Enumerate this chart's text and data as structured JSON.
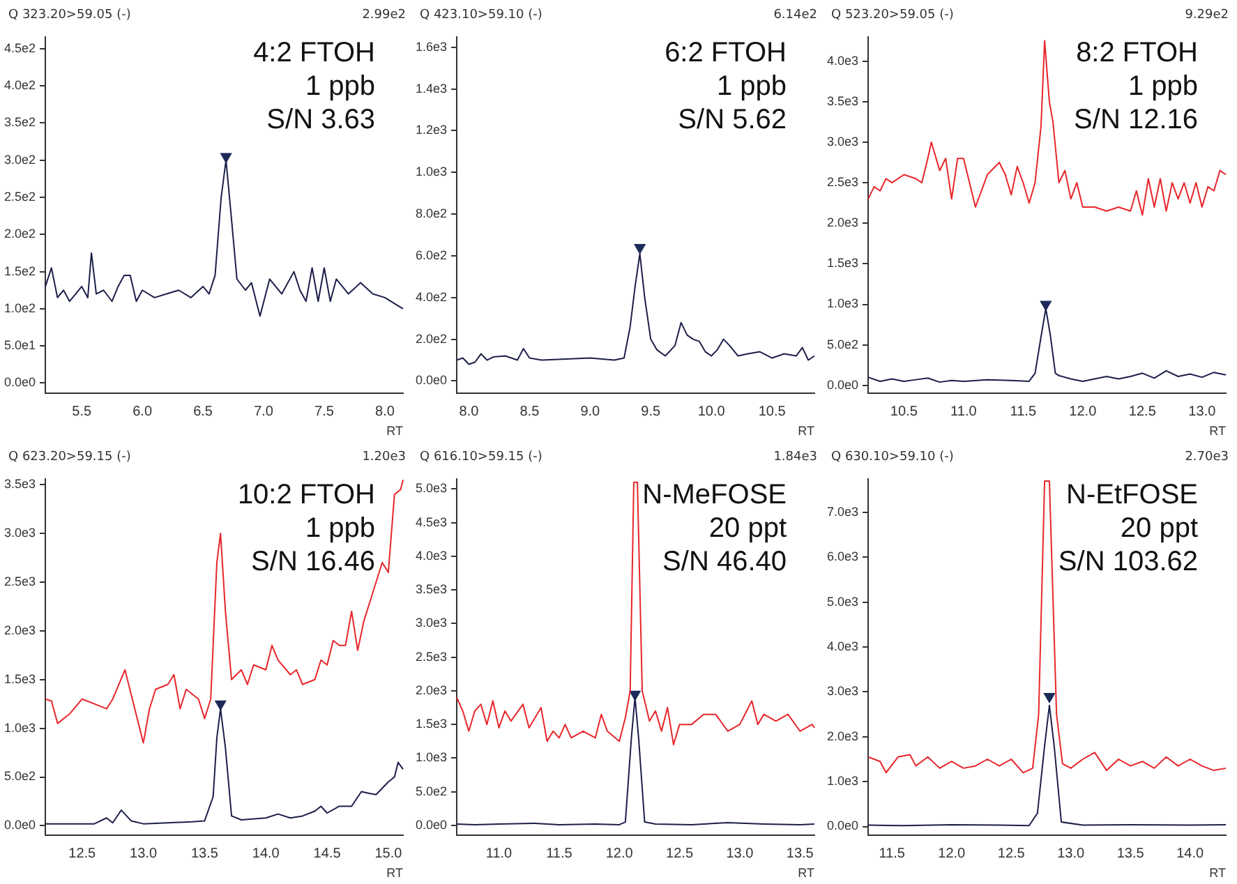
{
  "chart_data": [
    {
      "type": "line",
      "title": "Q 323.20>59.05 (-)",
      "xlabel": "RT",
      "annotations": [
        "2.99e2",
        "4:2 FTOH",
        "1 ppb",
        "S/N 3.63"
      ],
      "legend": false,
      "grid": false,
      "xlim": [
        5.2,
        8.15
      ],
      "ylim": [
        -14,
        466
      ],
      "xticks": [
        {
          "value": 5.5,
          "label": "5.5"
        },
        {
          "value": 6,
          "label": "6.0"
        },
        {
          "value": 6.5,
          "label": "6.5"
        },
        {
          "value": 7,
          "label": "7.0"
        },
        {
          "value": 7.5,
          "label": "7.5"
        },
        {
          "value": 8,
          "label": "8.0"
        }
      ],
      "yticks": [
        {
          "value": 0,
          "label": "0.0e0"
        },
        {
          "value": 50,
          "label": "5.0e1"
        },
        {
          "value": 100,
          "label": "1.0e2"
        },
        {
          "value": 150,
          "label": "1.5e2"
        },
        {
          "value": 200,
          "label": "2.0e2"
        },
        {
          "value": 250,
          "label": "2.5e2"
        },
        {
          "value": 300,
          "label": "3.0e2"
        },
        {
          "value": 350,
          "label": "3.5e2"
        },
        {
          "value": 400,
          "label": "4.0e2"
        },
        {
          "value": 450,
          "label": "4.5e2"
        }
      ],
      "series": [
        {
          "color": "#1c1f4a",
          "x": [
            5.2,
            5.25,
            5.3,
            5.35,
            5.4,
            5.45,
            5.5,
            5.55,
            5.58,
            5.62,
            5.68,
            5.75,
            5.8,
            5.85,
            5.9,
            5.95,
            6.0,
            6.1,
            6.2,
            6.3,
            6.4,
            6.5,
            6.55,
            6.6,
            6.65,
            6.69,
            6.73,
            6.78,
            6.85,
            6.9,
            6.97,
            7.05,
            7.15,
            7.25,
            7.3,
            7.35,
            7.4,
            7.45,
            7.5,
            7.55,
            7.6,
            7.7,
            7.8,
            7.9,
            8.0,
            8.1,
            8.15
          ],
          "values": [
            130,
            155,
            115,
            125,
            110,
            120,
            130,
            115,
            175,
            120,
            125,
            110,
            130,
            145,
            145,
            110,
            125,
            115,
            120,
            125,
            115,
            130,
            120,
            145,
            250,
            300,
            230,
            140,
            125,
            135,
            90,
            140,
            120,
            150,
            125,
            110,
            155,
            110,
            155,
            110,
            140,
            120,
            135,
            120,
            115,
            105,
            100
          ]
        },
        {
          "type": "scatter",
          "marker": "triangle",
          "color": "#1c2a5a",
          "x": [
            6.69
          ],
          "values": [
            305
          ]
        }
      ]
    },
    {
      "type": "line",
      "title": "Q 423.10>59.10 (-)",
      "xlabel": "RT",
      "annotations": [
        "6.14e2",
        "6:2 FTOH",
        "1 ppb",
        "S/N 5.62"
      ],
      "legend": false,
      "grid": false,
      "xlim": [
        7.9,
        10.85
      ],
      "ylim": [
        -60,
        1650
      ],
      "xticks": [
        {
          "value": 8,
          "label": "8.0"
        },
        {
          "value": 8.5,
          "label": "8.5"
        },
        {
          "value": 9,
          "label": "9.0"
        },
        {
          "value": 9.5,
          "label": "9.5"
        },
        {
          "value": 10,
          "label": "10.0"
        },
        {
          "value": 10.5,
          "label": "10.5"
        }
      ],
      "yticks": [
        {
          "value": 0,
          "label": "0.0e0"
        },
        {
          "value": 200,
          "label": "2.0e2"
        },
        {
          "value": 400,
          "label": "4.0e2"
        },
        {
          "value": 600,
          "label": "6.0e2"
        },
        {
          "value": 800,
          "label": "8.0e2"
        },
        {
          "value": 1000,
          "label": "1.0e3"
        },
        {
          "value": 1200,
          "label": "1.2e3"
        },
        {
          "value": 1400,
          "label": "1.4e3"
        },
        {
          "value": 1600,
          "label": "1.6e3"
        }
      ],
      "series": [
        {
          "color": "#1c1f4a",
          "x": [
            7.9,
            7.95,
            8.0,
            8.05,
            8.1,
            8.15,
            8.2,
            8.3,
            8.4,
            8.45,
            8.5,
            8.6,
            8.8,
            9.0,
            9.2,
            9.28,
            9.33,
            9.37,
            9.41,
            9.45,
            9.5,
            9.55,
            9.62,
            9.7,
            9.75,
            9.8,
            9.85,
            9.9,
            9.95,
            10.0,
            10.05,
            10.1,
            10.15,
            10.22,
            10.3,
            10.4,
            10.5,
            10.6,
            10.7,
            10.75,
            10.8,
            10.85
          ],
          "values": [
            100,
            110,
            80,
            90,
            130,
            100,
            115,
            120,
            100,
            155,
            110,
            100,
            105,
            110,
            100,
            110,
            260,
            450,
            610,
            400,
            200,
            150,
            120,
            170,
            280,
            220,
            200,
            190,
            140,
            120,
            150,
            200,
            170,
            120,
            130,
            140,
            110,
            130,
            120,
            160,
            100,
            120
          ]
        },
        {
          "type": "scatter",
          "marker": "triangle",
          "color": "#1c2a5a",
          "x": [
            9.41
          ],
          "values": [
            640
          ]
        }
      ]
    },
    {
      "type": "line",
      "title": "Q 523.20>59.05 (-)",
      "xlabel": "RT",
      "annotations": [
        "9.29e2",
        "8:2 FTOH",
        "1 ppb",
        "S/N 12.16"
      ],
      "legend": false,
      "grid": false,
      "xlim": [
        10.2,
        13.2
      ],
      "ylim": [
        -100,
        4300
      ],
      "xticks": [
        {
          "value": 10.5,
          "label": "10.5"
        },
        {
          "value": 11,
          "label": "11.0"
        },
        {
          "value": 11.5,
          "label": "11.5"
        },
        {
          "value": 12,
          "label": "12.0"
        },
        {
          "value": 12.5,
          "label": "12.5"
        },
        {
          "value": 13,
          "label": "13.0"
        }
      ],
      "yticks": [
        {
          "value": 0,
          "label": "0.0e0"
        },
        {
          "value": 500,
          "label": "5.0e2"
        },
        {
          "value": 1000,
          "label": "1.0e3"
        },
        {
          "value": 1500,
          "label": "1.5e3"
        },
        {
          "value": 2000,
          "label": "2.0e3"
        },
        {
          "value": 2500,
          "label": "2.5e3"
        },
        {
          "value": 3000,
          "label": "3.0e3"
        },
        {
          "value": 3500,
          "label": "3.5e3"
        },
        {
          "value": 4000,
          "label": "4.0e3"
        }
      ],
      "series": [
        {
          "color": "#e8262b",
          "x": [
            10.2,
            10.25,
            10.3,
            10.35,
            10.4,
            10.5,
            10.6,
            10.65,
            10.7,
            10.73,
            10.8,
            10.85,
            10.9,
            10.95,
            11.0,
            11.05,
            11.1,
            11.2,
            11.3,
            11.35,
            11.4,
            11.45,
            11.5,
            11.55,
            11.6,
            11.65,
            11.68,
            11.72,
            11.75,
            11.8,
            11.85,
            11.9,
            11.95,
            12.0,
            12.1,
            12.2,
            12.3,
            12.4,
            12.45,
            12.5,
            12.55,
            12.6,
            12.65,
            12.7,
            12.75,
            12.8,
            12.85,
            12.9,
            12.95,
            13.0,
            13.05,
            13.1,
            13.15,
            13.2
          ],
          "values": [
            2300,
            2450,
            2400,
            2550,
            2500,
            2600,
            2550,
            2500,
            2800,
            3000,
            2650,
            2800,
            2300,
            2800,
            2800,
            2500,
            2200,
            2600,
            2750,
            2600,
            2350,
            2700,
            2500,
            2250,
            2500,
            3200,
            4250,
            3500,
            3250,
            2500,
            2650,
            2300,
            2500,
            2200,
            2200,
            2150,
            2200,
            2150,
            2400,
            2100,
            2550,
            2200,
            2550,
            2150,
            2500,
            2300,
            2500,
            2250,
            2500,
            2200,
            2450,
            2400,
            2650,
            2600
          ]
        },
        {
          "color": "#1c1f4a",
          "x": [
            10.2,
            10.3,
            10.4,
            10.5,
            10.6,
            10.7,
            10.8,
            10.9,
            11.0,
            11.2,
            11.4,
            11.55,
            11.6,
            11.65,
            11.69,
            11.73,
            11.77,
            11.8,
            11.9,
            12.0,
            12.1,
            12.2,
            12.3,
            12.4,
            12.5,
            12.6,
            12.7,
            12.8,
            12.9,
            13.0,
            13.1,
            13.2
          ],
          "values": [
            100,
            50,
            80,
            50,
            70,
            90,
            40,
            60,
            50,
            70,
            60,
            50,
            150,
            600,
            950,
            600,
            150,
            120,
            80,
            50,
            80,
            110,
            80,
            110,
            150,
            90,
            180,
            110,
            140,
            100,
            160,
            130
          ]
        },
        {
          "type": "scatter",
          "marker": "triangle",
          "color": "#1c2a5a",
          "x": [
            11.69
          ],
          "values": [
            1000
          ]
        }
      ]
    },
    {
      "type": "line",
      "title": "Q 623.20>59.15 (-)",
      "xlabel": "RT",
      "annotations": [
        "1.20e3",
        "10:2 FTOH",
        "1 ppb",
        "S/N 16.46"
      ],
      "legend": false,
      "grid": false,
      "xlim": [
        12.2,
        15.12
      ],
      "ylim": [
        -100,
        3560
      ],
      "xticks": [
        {
          "value": 12.5,
          "label": "12.5"
        },
        {
          "value": 13,
          "label": "13.0"
        },
        {
          "value": 13.5,
          "label": "13.5"
        },
        {
          "value": 14,
          "label": "14.0"
        },
        {
          "value": 14.5,
          "label": "14.5"
        },
        {
          "value": 15,
          "label": "15.0"
        }
      ],
      "yticks": [
        {
          "value": 0,
          "label": "0.0e0"
        },
        {
          "value": 500,
          "label": "5.0e2"
        },
        {
          "value": 1000,
          "label": "1.0e3"
        },
        {
          "value": 1500,
          "label": "1.5e3"
        },
        {
          "value": 2000,
          "label": "2.0e3"
        },
        {
          "value": 2500,
          "label": "2.5e3"
        },
        {
          "value": 3000,
          "label": "3.0e3"
        },
        {
          "value": 3500,
          "label": "3.5e3"
        }
      ],
      "series": [
        {
          "color": "#e8262b",
          "x": [
            12.2,
            12.25,
            12.3,
            12.4,
            12.5,
            12.6,
            12.7,
            12.75,
            12.85,
            12.9,
            12.95,
            13.0,
            13.05,
            13.1,
            13.2,
            13.25,
            13.3,
            13.35,
            13.45,
            13.5,
            13.55,
            13.6,
            13.63,
            13.67,
            13.72,
            13.8,
            13.85,
            13.9,
            14.0,
            14.05,
            14.1,
            14.2,
            14.25,
            14.3,
            14.4,
            14.45,
            14.5,
            14.55,
            14.6,
            14.65,
            14.7,
            14.75,
            14.8,
            14.85,
            14.9,
            14.95,
            15.0,
            15.05,
            15.1,
            15.12
          ],
          "values": [
            1300,
            1280,
            1050,
            1150,
            1300,
            1250,
            1200,
            1300,
            1600,
            1350,
            1100,
            850,
            1200,
            1400,
            1450,
            1550,
            1200,
            1400,
            1300,
            1100,
            1300,
            2700,
            3000,
            2200,
            1500,
            1600,
            1450,
            1650,
            1600,
            1850,
            1700,
            1550,
            1600,
            1450,
            1500,
            1700,
            1650,
            1900,
            1850,
            1850,
            2200,
            1800,
            2100,
            2300,
            2500,
            2700,
            2600,
            3400,
            3450,
            3550
          ]
        },
        {
          "color": "#1c1f4a",
          "x": [
            12.2,
            12.4,
            12.6,
            12.7,
            12.75,
            12.82,
            12.9,
            13.0,
            13.2,
            13.4,
            13.5,
            13.57,
            13.6,
            13.63,
            13.67,
            13.72,
            13.8,
            14.0,
            14.1,
            14.2,
            14.3,
            14.4,
            14.45,
            14.5,
            14.6,
            14.7,
            14.78,
            14.85,
            14.9,
            15.0,
            15.05,
            15.08,
            15.12
          ],
          "values": [
            20,
            20,
            20,
            80,
            30,
            160,
            50,
            20,
            30,
            40,
            50,
            300,
            900,
            1200,
            800,
            100,
            60,
            80,
            120,
            80,
            100,
            150,
            200,
            130,
            200,
            200,
            350,
            330,
            320,
            450,
            500,
            650,
            580
          ]
        },
        {
          "type": "scatter",
          "marker": "triangle",
          "color": "#1c2a5a",
          "x": [
            13.63
          ],
          "values": [
            1250
          ]
        }
      ]
    },
    {
      "type": "line",
      "title": "Q 616.10>59.15 (-)",
      "xlabel": "RT",
      "annotations": [
        "1.84e3",
        "N-MeFOSE",
        "20 ppt",
        "S/N 46.40"
      ],
      "legend": false,
      "grid": false,
      "xlim": [
        10.65,
        13.62
      ],
      "ylim": [
        -150,
        5150
      ],
      "xticks": [
        {
          "value": 11,
          "label": "11.0"
        },
        {
          "value": 11.5,
          "label": "11.5"
        },
        {
          "value": 12,
          "label": "12.0"
        },
        {
          "value": 12.5,
          "label": "12.5"
        },
        {
          "value": 13,
          "label": "13.0"
        },
        {
          "value": 13.5,
          "label": "13.5"
        }
      ],
      "yticks": [
        {
          "value": 0,
          "label": "0.0e0"
        },
        {
          "value": 500,
          "label": "5.0e2"
        },
        {
          "value": 1000,
          "label": "1.0e3"
        },
        {
          "value": 1500,
          "label": "1.5e3"
        },
        {
          "value": 2000,
          "label": "2.0e3"
        },
        {
          "value": 2500,
          "label": "2.5e3"
        },
        {
          "value": 3000,
          "label": "3.0e3"
        },
        {
          "value": 3500,
          "label": "3.5e3"
        },
        {
          "value": 4000,
          "label": "4.0e3"
        },
        {
          "value": 4500,
          "label": "4.5e3"
        },
        {
          "value": 5000,
          "label": "5.0e3"
        }
      ],
      "series": [
        {
          "color": "#e8262b",
          "x": [
            10.65,
            10.7,
            10.75,
            10.8,
            10.85,
            10.9,
            10.95,
            11.0,
            11.05,
            11.1,
            11.2,
            11.25,
            11.3,
            11.35,
            11.4,
            11.45,
            11.5,
            11.55,
            11.6,
            11.7,
            11.8,
            11.85,
            11.9,
            12.0,
            12.05,
            12.09,
            12.12,
            12.15,
            12.19,
            12.25,
            12.3,
            12.35,
            12.4,
            12.45,
            12.5,
            12.6,
            12.7,
            12.8,
            12.9,
            13.0,
            13.1,
            13.15,
            13.2,
            13.3,
            13.4,
            13.5,
            13.6,
            13.62
          ],
          "values": [
            1900,
            1700,
            1400,
            1700,
            1800,
            1500,
            1850,
            1450,
            1700,
            1550,
            1800,
            1450,
            1600,
            1750,
            1250,
            1400,
            1300,
            1500,
            1300,
            1400,
            1300,
            1650,
            1400,
            1250,
            1600,
            2000,
            5100,
            5100,
            2000,
            1550,
            1700,
            1400,
            1750,
            1200,
            1500,
            1500,
            1650,
            1650,
            1400,
            1500,
            1850,
            1500,
            1650,
            1550,
            1650,
            1400,
            1500,
            1450
          ]
        },
        {
          "color": "#1c1f4a",
          "x": [
            10.65,
            10.8,
            11.0,
            11.3,
            11.5,
            11.8,
            12.0,
            12.05,
            12.1,
            12.13,
            12.16,
            12.21,
            12.3,
            12.6,
            12.9,
            13.2,
            13.5,
            13.62
          ],
          "values": [
            20,
            10,
            20,
            30,
            10,
            20,
            10,
            50,
            1300,
            1900,
            1300,
            50,
            20,
            10,
            40,
            20,
            10,
            20
          ]
        },
        {
          "type": "scatter",
          "marker": "triangle",
          "color": "#1c2a5a",
          "x": [
            12.13
          ],
          "values": [
            1950
          ]
        }
      ]
    },
    {
      "type": "line",
      "title": "Q 630.10>59.10 (-)",
      "xlabel": "RT",
      "annotations": [
        "2.70e3",
        "N-EtFOSE",
        "20 ppt",
        "S/N 103.62"
      ],
      "legend": false,
      "grid": false,
      "xlim": [
        11.3,
        14.3
      ],
      "ylim": [
        -200,
        7750
      ],
      "xticks": [
        {
          "value": 11.5,
          "label": "11.5"
        },
        {
          "value": 12,
          "label": "12.0"
        },
        {
          "value": 12.5,
          "label": "12.5"
        },
        {
          "value": 13,
          "label": "13.0"
        },
        {
          "value": 13.5,
          "label": "13.5"
        },
        {
          "value": 14,
          "label": "14.0"
        }
      ],
      "yticks": [
        {
          "value": 0,
          "label": "0.0e0"
        },
        {
          "value": 1000,
          "label": "1.0e3"
        },
        {
          "value": 2000,
          "label": "2.0e3"
        },
        {
          "value": 3000,
          "label": "3.0e3"
        },
        {
          "value": 4000,
          "label": "4.0e3"
        },
        {
          "value": 5000,
          "label": "5.0e3"
        },
        {
          "value": 6000,
          "label": "6.0e3"
        },
        {
          "value": 7000,
          "label": "7.0e3"
        }
      ],
      "series": [
        {
          "color": "#e8262b",
          "x": [
            11.3,
            11.4,
            11.45,
            11.55,
            11.65,
            11.7,
            11.8,
            11.9,
            12.0,
            12.1,
            12.2,
            12.3,
            12.4,
            12.5,
            12.6,
            12.68,
            12.73,
            12.78,
            12.82,
            12.88,
            12.93,
            13.0,
            13.1,
            13.2,
            13.3,
            13.4,
            13.5,
            13.6,
            13.7,
            13.8,
            13.9,
            14.0,
            14.1,
            14.2,
            14.3
          ],
          "values": [
            1550,
            1450,
            1200,
            1550,
            1600,
            1350,
            1550,
            1300,
            1450,
            1300,
            1350,
            1500,
            1350,
            1500,
            1200,
            1300,
            2500,
            7700,
            7700,
            2500,
            1400,
            1300,
            1500,
            1650,
            1250,
            1500,
            1350,
            1450,
            1300,
            1550,
            1350,
            1500,
            1350,
            1250,
            1300
          ]
        },
        {
          "color": "#1c1f4a",
          "x": [
            11.3,
            11.6,
            12.0,
            12.4,
            12.65,
            12.72,
            12.78,
            12.82,
            12.86,
            12.92,
            13.1,
            13.5,
            14.0,
            14.3
          ],
          "values": [
            30,
            20,
            40,
            30,
            20,
            300,
            1800,
            2700,
            1800,
            100,
            30,
            40,
            30,
            40
          ]
        },
        {
          "type": "scatter",
          "marker": "triangle",
          "color": "#1c2a5a",
          "x": [
            12.82
          ],
          "values": [
            2900
          ]
        }
      ]
    }
  ]
}
